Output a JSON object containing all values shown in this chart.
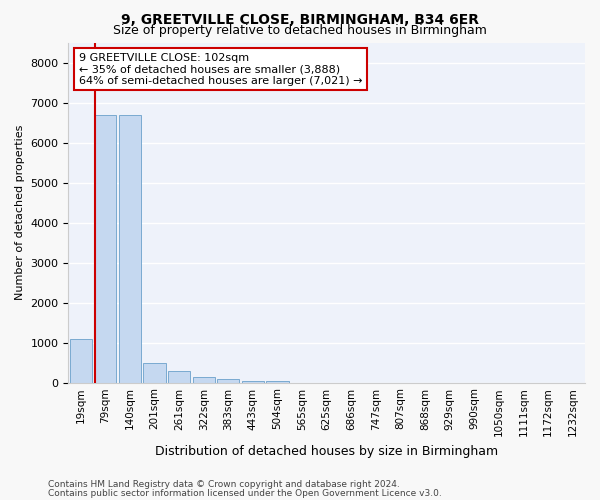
{
  "title1": "9, GREETVILLE CLOSE, BIRMINGHAM, B34 6ER",
  "title2": "Size of property relative to detached houses in Birmingham",
  "xlabel": "Distribution of detached houses by size in Birmingham",
  "ylabel": "Number of detached properties",
  "categories": [
    "19sqm",
    "79sqm",
    "140sqm",
    "201sqm",
    "261sqm",
    "322sqm",
    "383sqm",
    "443sqm",
    "504sqm",
    "565sqm",
    "625sqm",
    "686sqm",
    "747sqm",
    "807sqm",
    "868sqm",
    "929sqm",
    "990sqm",
    "1050sqm",
    "1111sqm",
    "1172sqm",
    "1232sqm"
  ],
  "values": [
    1100,
    6700,
    6700,
    500,
    280,
    150,
    80,
    50,
    50,
    0,
    0,
    0,
    0,
    0,
    0,
    0,
    0,
    0,
    0,
    0,
    0
  ],
  "bar_color": "#c5d8f0",
  "bar_edge_color": "#7aaad0",
  "vline_color": "#cc0000",
  "vline_position": 0.575,
  "annotation_text": "9 GREETVILLE CLOSE: 102sqm\n← 35% of detached houses are smaller (3,888)\n64% of semi-detached houses are larger (7,021) →",
  "annotation_box_color": "#ffffff",
  "annotation_box_edge": "#cc0000",
  "ylim": [
    0,
    8500
  ],
  "yticks": [
    0,
    1000,
    2000,
    3000,
    4000,
    5000,
    6000,
    7000,
    8000
  ],
  "footer1": "Contains HM Land Registry data © Crown copyright and database right 2024.",
  "footer2": "Contains public sector information licensed under the Open Government Licence v3.0.",
  "bg_color": "#eef2fa",
  "grid_color": "#ffffff",
  "fig_bg_color": "#f8f8f8",
  "title1_fontsize": 10,
  "title2_fontsize": 9,
  "ann_fontsize": 8
}
